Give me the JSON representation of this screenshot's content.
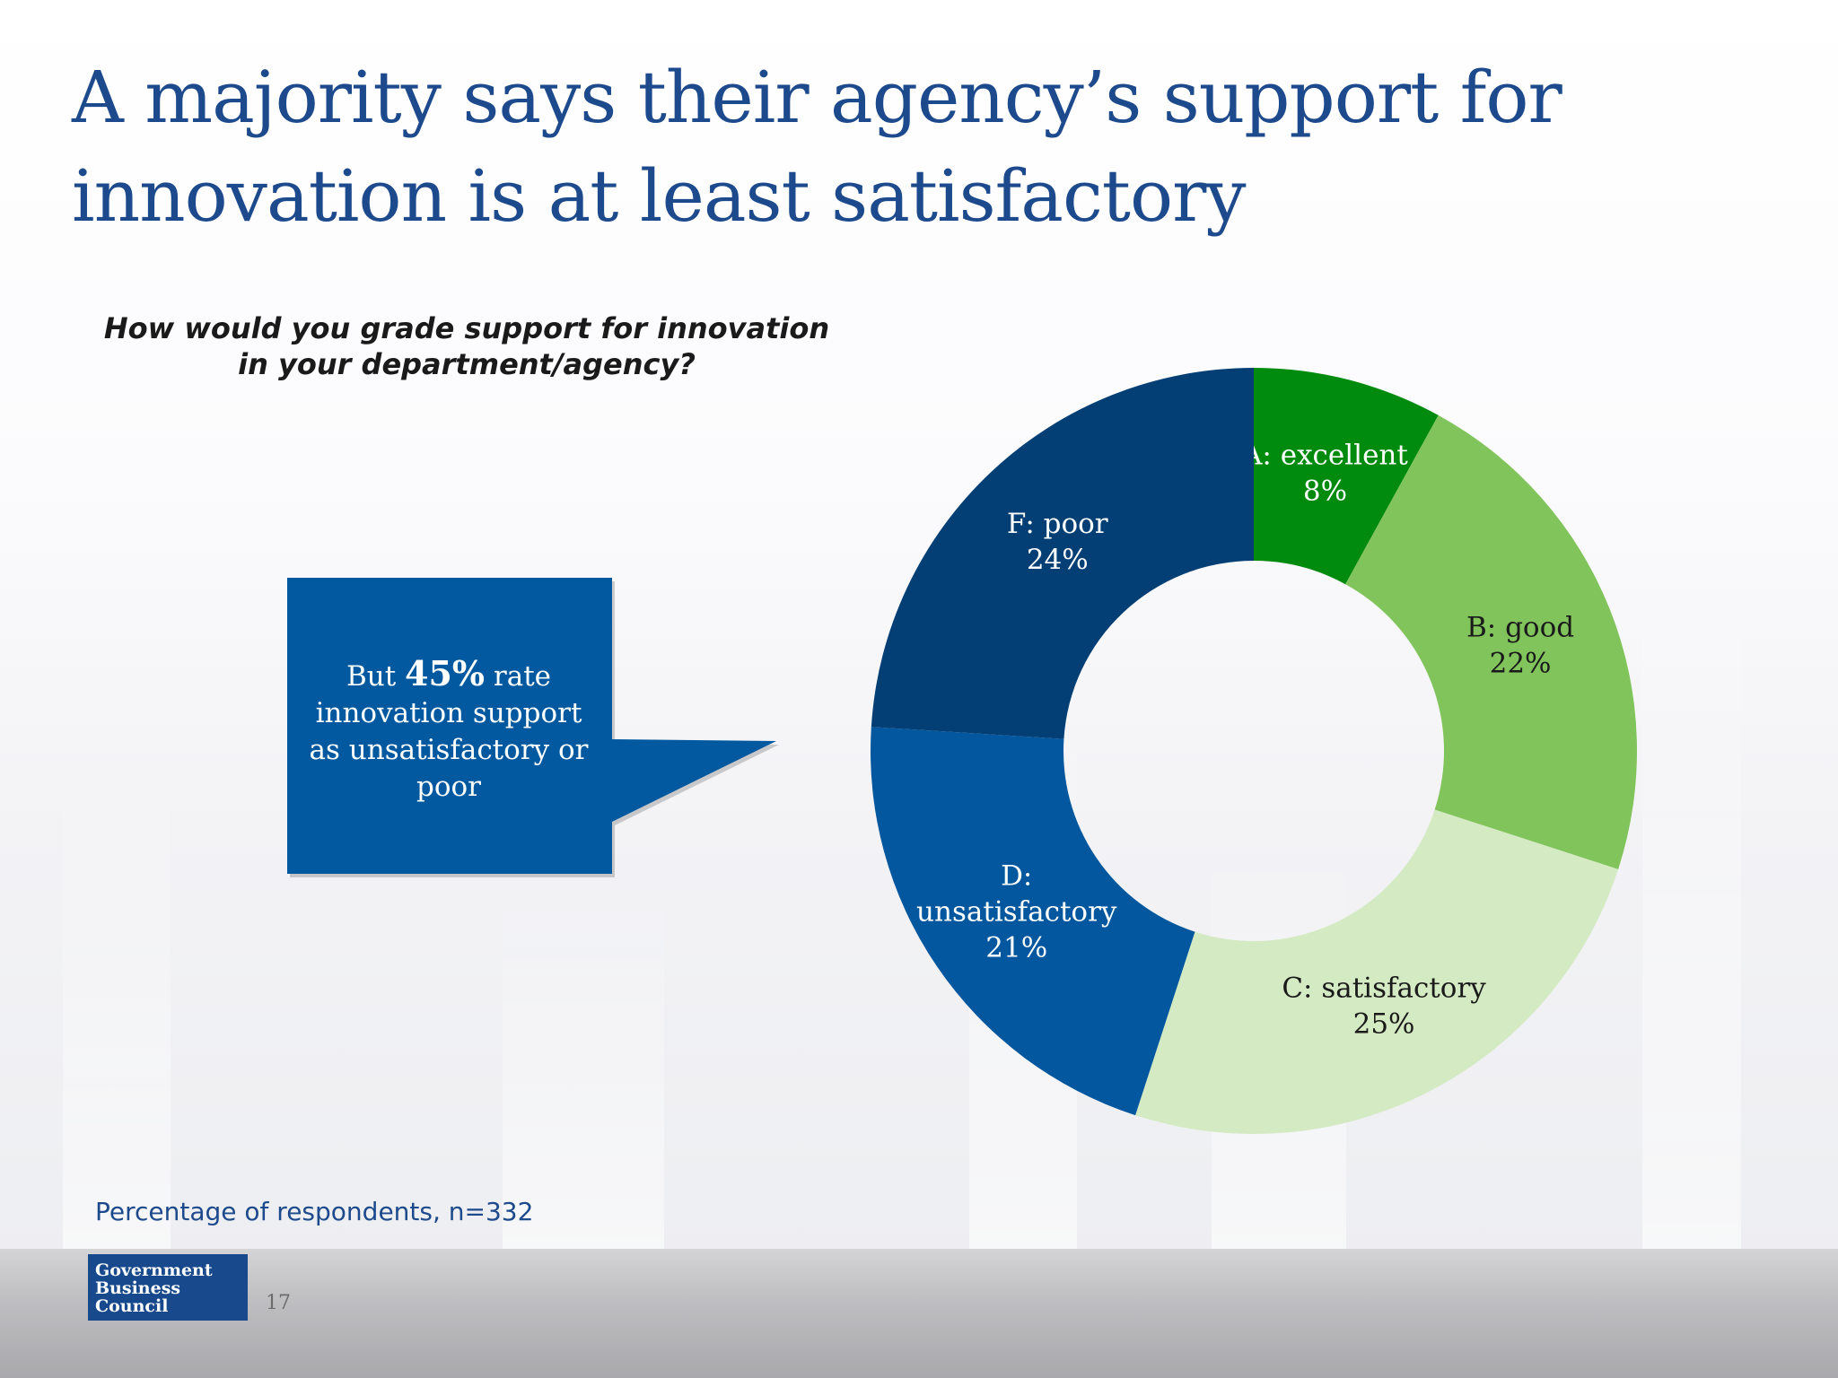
{
  "slide": {
    "title": "A majority says their agency’s support for innovation is at least satisfactory",
    "question": "How would you grade support for innovation in your department/agency?",
    "footnote": "Percentage of respondents, n=332",
    "page_number": "17"
  },
  "callout": {
    "prefix": "But ",
    "highlight": "45%",
    "suffix": " rate innovation support as unsatisfactory or poor",
    "color": "#02599f"
  },
  "logo": {
    "lines": [
      "Government",
      "Business",
      "Council"
    ],
    "color": "#17498c"
  },
  "chart_data": {
    "type": "pie",
    "style": "donut",
    "title": "",
    "unit": "%",
    "start": "12 o'clock",
    "direction": "clockwise",
    "slices": [
      {
        "label": "A: excellent",
        "lines": [
          "A: excellent"
        ],
        "value": 8,
        "value_label": "8%",
        "color": "#008a0e",
        "text_color": "#ffffff"
      },
      {
        "label": "B: good",
        "lines": [
          "B: good"
        ],
        "value": 22,
        "value_label": "22%",
        "color": "#80c45b",
        "text_color": "#1a1a1a"
      },
      {
        "label": "C: satisfactory",
        "lines": [
          "C: satisfactory"
        ],
        "value": 25,
        "value_label": "25%",
        "color": "#d4eac3",
        "text_color": "#1a1a1a"
      },
      {
        "label": "D: unsatisfactory",
        "lines": [
          "D:",
          "unsatisfactory"
        ],
        "value": 21,
        "value_label": "21%",
        "color": "#02579e",
        "text_color": "#ffffff"
      },
      {
        "label": "F: poor",
        "lines": [
          "F: poor"
        ],
        "value": 24,
        "value_label": "24%",
        "color": "#033f74",
        "text_color": "#ffffff"
      }
    ]
  }
}
